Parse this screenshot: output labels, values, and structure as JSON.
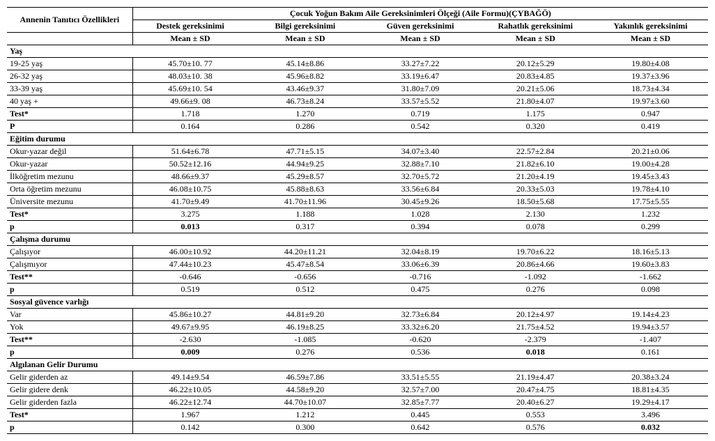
{
  "header": {
    "row_label": "Annenin Tanıtıcı Özellikleri",
    "main_title": "Çocuk Yoğun Bakım Aile Gereksinimleri Ölçeği (Aile Formu)(ÇYBAĞÖ)",
    "cols": [
      "Destek gereksinimi",
      "Bilgi gereksinimi",
      "Güven gereksinimi",
      "Rahatlık gereksinimi",
      "Yakınlık gereksinimi"
    ],
    "mean_sd": "Mean  ± SD"
  },
  "sections": [
    {
      "title": "Yaş",
      "rows": [
        {
          "label": "19-25 yaş",
          "cells": [
            "45.70±10. 77",
            "45.14±8.86",
            "33.27±7.22",
            "20.12±5.29",
            "19.80±4.08"
          ]
        },
        {
          "label": "26-32 yaş",
          "cells": [
            "48.03±10. 38",
            "45.96±8.82",
            "33.19±6.47",
            "20.83±4.85",
            "19.37±3.96"
          ]
        },
        {
          "label": "33-39 yaş",
          "cells": [
            "45.69±10. 54",
            "43.46±9.37",
            "31.80±7.09",
            "20.21±5.06",
            "18.73±4.34"
          ]
        },
        {
          "label": "40 yaş +",
          "cells": [
            "49.66±9. 08",
            "46.73±8.24",
            "33.57±5.52",
            "21.80±4.07",
            "19.97±3.60"
          ]
        }
      ],
      "test": {
        "label": "Test*",
        "cells": [
          "1.718",
          "1.270",
          "0.719",
          "1.175",
          "0.947"
        ]
      },
      "p": {
        "label": "P",
        "cells": [
          "0.164",
          "0.286",
          "0.542",
          "0.320",
          "0.419"
        ],
        "bold_idx": []
      }
    },
    {
      "title": "Eğitim durumu",
      "rows": [
        {
          "label": "Okur-yazar değil",
          "cells": [
            "51.64±6.78",
            "47.71±5.15",
            "34.07±3.40",
            "22.57±2.84",
            "20.21±0.06"
          ]
        },
        {
          "label": "Okur-yazar",
          "cells": [
            "50.52±12.16",
            "44.94±9.25",
            "32.88±7.10",
            "21.82±6.10",
            "19.00±4.28"
          ]
        },
        {
          "label": "İlköğretim mezunu",
          "cells": [
            "48.66±9.37",
            "45.29±8.57",
            "32.70±5.72",
            "21.20±4.19",
            "19.45±3.43"
          ]
        },
        {
          "label": "Orta öğretim mezunu",
          "cells": [
            "46.08±10.75",
            "45.88±8.63",
            "33.56±6.84",
            "20.33±5.03",
            "19.78±4.10"
          ]
        },
        {
          "label": "Üniversite mezunu",
          "cells": [
            "41.70±9.49",
            "41.70±11.96",
            "30.45±9.26",
            "18.50±5.68",
            "17.75±5.55"
          ]
        }
      ],
      "test": {
        "label": "Test*",
        "cells": [
          "3.275",
          "1.188",
          "1.028",
          "2.130",
          "1.232"
        ]
      },
      "p": {
        "label": "p",
        "cells": [
          "0.013",
          "0.317",
          "0.394",
          "0.078",
          "0.299"
        ],
        "bold_idx": [
          0
        ]
      }
    },
    {
      "title": "Çalışma durumu",
      "rows": [
        {
          "label": "Çalışıyor",
          "cells": [
            "46.00±10.92",
            "44.20±11.21",
            "32.04±8.19",
            "19.70±6.22",
            "18.16±5.13"
          ]
        },
        {
          "label": "Çalışmıyor",
          "cells": [
            "47.44±10.23",
            "45.47±8.54",
            "33.06±6.39",
            "20.86±4.66",
            "19.60±3.83"
          ]
        }
      ],
      "test": {
        "label": "Test**",
        "cells": [
          "-0.646",
          "-0.656",
          "-0.716",
          "-1.092",
          "-1.662"
        ]
      },
      "p": {
        "label": "p",
        "cells": [
          "0.519",
          "0.512",
          "0.475",
          "0.276",
          "0.098"
        ],
        "bold_idx": []
      }
    },
    {
      "title": "Sosyal güvence varlığı",
      "rows": [
        {
          "label": "Var",
          "cells": [
            "45.86±10.27",
            "44.81±9.20",
            "32.73±6.84",
            "20.12±4.97",
            "19.14±4.23"
          ]
        },
        {
          "label": "Yok",
          "cells": [
            "49.67±9.95",
            "46.19±8.25",
            "33.32±6.20",
            "21.75±4.52",
            "19.94±3.57"
          ]
        }
      ],
      "test": {
        "label": "Test**",
        "cells": [
          "-2.630",
          "-1.085",
          "-0.620",
          "-2.379",
          "-1.407"
        ]
      },
      "p": {
        "label": "p",
        "cells": [
          "0.009",
          "0.276",
          "0.536",
          "0.018",
          "0.161"
        ],
        "bold_idx": [
          0,
          3
        ]
      }
    },
    {
      "title": "Algılanan Gelir Durumu",
      "rows": [
        {
          "label": "Gelir giderden az",
          "cells": [
            "49.14±9.54",
            "46.59±7.86",
            "33.51±5.55",
            "21.19±4.47",
            "20.38±3.24"
          ]
        },
        {
          "label": "Gelir gidere denk",
          "cells": [
            "46.22±10.05",
            "44.58±9.20",
            "32.57±7.00",
            "20.47±4.75",
            "18.81±4.35"
          ]
        },
        {
          "label": "Gelir giderden fazla",
          "cells": [
            "46.22±12.74",
            "44.70±10.07",
            "32.85±7.77",
            "20.40±6.27",
            "19.29±4.17"
          ]
        }
      ],
      "test": {
        "label": "Test*",
        "cells": [
          "1.967",
          "1.212",
          "0.445",
          "0.553",
          "3.496"
        ]
      },
      "p": {
        "label": "p",
        "cells": [
          "0.142",
          "0.300",
          "0.642",
          "0.576",
          "0.032"
        ],
        "bold_idx": [
          4
        ]
      }
    }
  ]
}
